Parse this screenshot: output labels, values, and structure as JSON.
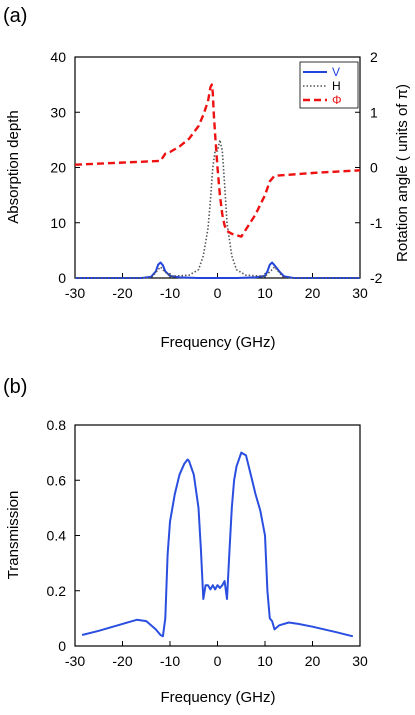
{
  "chart_data": [
    {
      "type": "line",
      "panel_label": "(a)",
      "xlabel": "Frequency (GHz)",
      "ylabel": "Absorption depth",
      "y2label": "Rotation angle ( units of π)",
      "xlim": [
        -30,
        30
      ],
      "ylim": [
        0,
        40
      ],
      "y2lim": [
        -2,
        2
      ],
      "xticks": [
        -30,
        -20,
        -10,
        0,
        10,
        20,
        30
      ],
      "yticks": [
        0,
        10,
        20,
        30,
        40
      ],
      "y2ticks": [
        -2,
        -1,
        0,
        1,
        2
      ],
      "legend_position": "top-right",
      "colors": {
        "V": "#2244dd",
        "H": "#555555",
        "phi": "#ee1111",
        "y2axis": "#ee1111"
      },
      "series": [
        {
          "name": "V",
          "axis": "left",
          "style": "solid",
          "x": [
            -30,
            -16,
            -14,
            -13,
            -12.5,
            -12,
            -11.5,
            -11,
            -10,
            -8,
            -4,
            -2,
            0,
            2,
            4,
            8,
            10,
            10.5,
            11,
            11.5,
            12,
            13,
            14,
            16,
            30
          ],
          "y": [
            0,
            0,
            0.2,
            1.2,
            2.4,
            2.8,
            2.3,
            1.2,
            0.4,
            0.1,
            0,
            0,
            0,
            0,
            0,
            0.1,
            0.4,
            1.2,
            2.4,
            2.8,
            2.3,
            1.2,
            0.3,
            0,
            0
          ]
        },
        {
          "name": "H",
          "axis": "left",
          "style": "dotted",
          "x": [
            -30,
            -14,
            -12.5,
            -12,
            -11.5,
            -10,
            -6,
            -4,
            -3,
            -2,
            -1.5,
            -1,
            -0.5,
            0,
            0.5,
            1,
            1.5,
            2,
            3,
            4,
            6,
            10,
            11.5,
            12,
            12.5,
            14,
            30
          ],
          "y": [
            0,
            0,
            1.5,
            2,
            1.5,
            0.3,
            0.5,
            1.5,
            4,
            9,
            14,
            20,
            23,
            23,
            25,
            23,
            17,
            10,
            4,
            1.5,
            0.5,
            0.3,
            1.5,
            2,
            1.5,
            0,
            0
          ]
        },
        {
          "name": "Φ",
          "axis": "right",
          "style": "dashed",
          "x": [
            -30,
            -12,
            -11,
            -10,
            -8,
            -6,
            -4,
            -3,
            -2,
            -1.5,
            -1.2,
            -1,
            -0.8,
            -0.5,
            0,
            0.5,
            1,
            1.5,
            2,
            3,
            5,
            8,
            10,
            11,
            12,
            20,
            30
          ],
          "y": [
            0.05,
            0.12,
            0.25,
            0.28,
            0.38,
            0.52,
            0.75,
            0.95,
            1.2,
            1.45,
            1.5,
            1.35,
            1.0,
            0.6,
            0,
            -0.5,
            -0.85,
            -1.05,
            -1.15,
            -1.2,
            -1.25,
            -0.85,
            -0.5,
            -0.25,
            -0.15,
            -0.1,
            -0.05
          ]
        }
      ]
    },
    {
      "type": "line",
      "panel_label": "(b)",
      "xlabel": "Frequency (GHz)",
      "ylabel": "Transmission",
      "xlim": [
        -30,
        30
      ],
      "ylim": [
        0,
        0.8
      ],
      "xticks": [
        -30,
        -20,
        -10,
        0,
        10,
        20,
        30
      ],
      "yticks": [
        0,
        0.2,
        0.4,
        0.6,
        0.8
      ],
      "colors": {
        "line": "#2a4fe0"
      },
      "series": [
        {
          "style": "solid",
          "x": [
            -28.5,
            -25,
            -20,
            -17,
            -15,
            -13,
            -12,
            -11.5,
            -11,
            -10.5,
            -10,
            -9,
            -8,
            -7,
            -6.3,
            -6,
            -5,
            -4,
            -3.5,
            -3,
            -2.5,
            -2,
            -1.5,
            -1,
            -0.5,
            0,
            0.5,
            1,
            1.5,
            2,
            2.5,
            3,
            3.5,
            4,
            5,
            6,
            7,
            8,
            9,
            10,
            10.5,
            11,
            11.5,
            12,
            13,
            15,
            17,
            20,
            25,
            28.5
          ],
          "y": [
            0.04,
            0.055,
            0.08,
            0.095,
            0.09,
            0.06,
            0.04,
            0.035,
            0.1,
            0.33,
            0.45,
            0.55,
            0.62,
            0.66,
            0.675,
            0.67,
            0.62,
            0.5,
            0.35,
            0.17,
            0.22,
            0.22,
            0.205,
            0.22,
            0.205,
            0.22,
            0.21,
            0.22,
            0.235,
            0.17,
            0.34,
            0.5,
            0.6,
            0.65,
            0.7,
            0.69,
            0.62,
            0.55,
            0.49,
            0.4,
            0.2,
            0.1,
            0.09,
            0.06,
            0.075,
            0.085,
            0.08,
            0.07,
            0.05,
            0.035
          ]
        }
      ]
    }
  ]
}
